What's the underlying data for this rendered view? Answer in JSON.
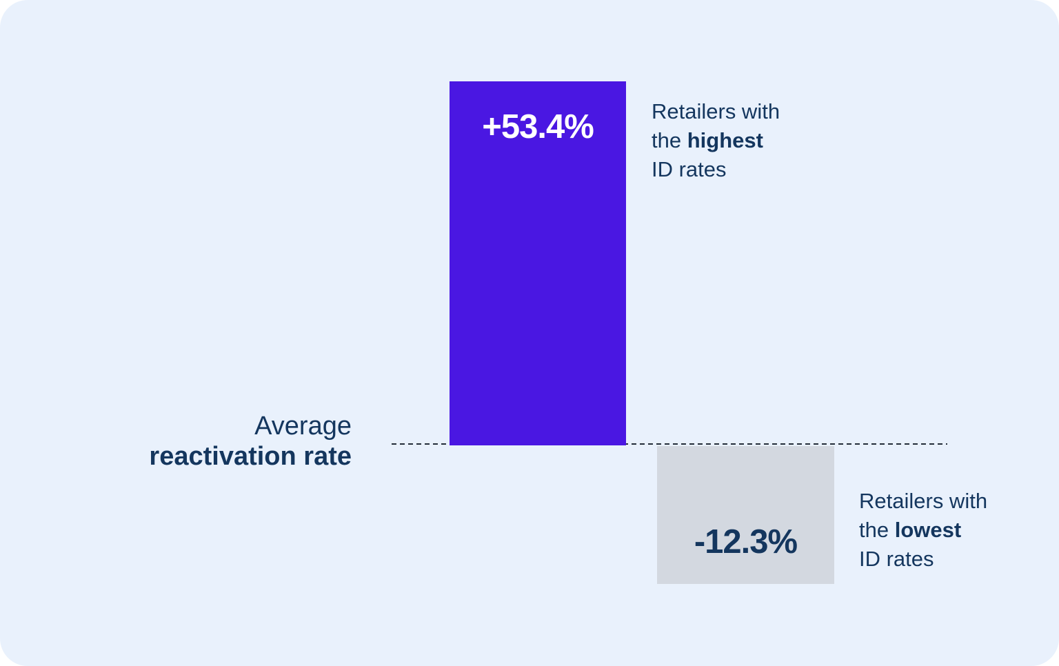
{
  "colors": {
    "card_background": "#e9f1fc",
    "bar_positive": "#4a17e2",
    "bar_negative": "#d3d8e0",
    "text_navy": "#14365e",
    "value_on_purple": "#ffffff",
    "baseline_dash": "#222b38"
  },
  "chart_data": {
    "type": "bar",
    "categories": [
      "Retailers with the highest ID rates",
      "Retailers with the lowest ID rates"
    ],
    "values": [
      53.4,
      -12.3
    ],
    "value_labels": [
      "+53.4%",
      "-12.3%"
    ],
    "bar_colors": [
      "#4a17e2",
      "#d3d8e0"
    ],
    "baseline": {
      "value": 0,
      "label": "Average reactivation rate",
      "style": "dashed"
    },
    "title": "",
    "xlabel": "",
    "ylabel": "",
    "legend": "none",
    "grid": "off"
  },
  "positive_bar": {
    "value_label": "+53.4%",
    "annotation": {
      "line1": "Retailers with",
      "line2_pre": "the ",
      "line2_bold": "highest",
      "line3": "ID rates"
    }
  },
  "negative_bar": {
    "value_label": "-12.3%",
    "annotation": {
      "line1": "Retailers with",
      "line2_pre": "the ",
      "line2_bold": "lowest",
      "line3": "ID rates"
    }
  },
  "baseline_label": {
    "line1": "Average",
    "line2": "reactivation rate"
  }
}
